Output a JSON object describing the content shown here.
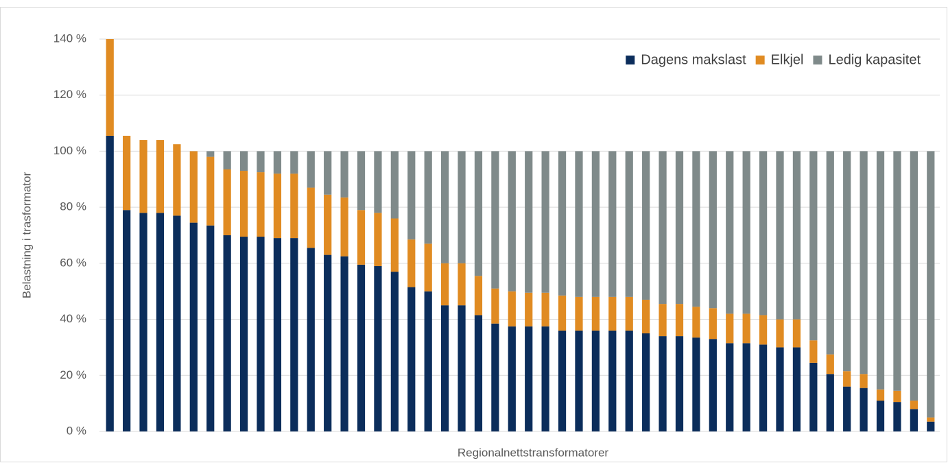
{
  "chart_data": {
    "type": "stacked_bar",
    "x_label": "Regionalnettstransformatorer",
    "y_label": "Belastning i trasformator",
    "categories": [
      null,
      null,
      null,
      null,
      null,
      null,
      null,
      null,
      null,
      null,
      null,
      null,
      null,
      null,
      null,
      null,
      null,
      null,
      null,
      null,
      null,
      null,
      null,
      null,
      null,
      null,
      null,
      null,
      null,
      null,
      null,
      null,
      null,
      null,
      null,
      null,
      null,
      null,
      null,
      null,
      null,
      null,
      null,
      null,
      null,
      null,
      null,
      null,
      null,
      null
    ],
    "series": [
      {
        "name": "Dagens makslast",
        "color": "#0b2d5b",
        "values": [
          105.5,
          79,
          78,
          78,
          77,
          74.5,
          73.5,
          70,
          69.5,
          69.5,
          69,
          69,
          65.5,
          63,
          62.5,
          59.5,
          59,
          57,
          51.5,
          50,
          45,
          45,
          41.5,
          38.5,
          37.5,
          37.5,
          37.5,
          36,
          36,
          36,
          36,
          36,
          35,
          34,
          34,
          33.5,
          33,
          31.5,
          31.5,
          31,
          30,
          30,
          24.5,
          20.5,
          16,
          15.5,
          11,
          10.5,
          8,
          3.5
        ]
      },
      {
        "name": "Elkjel",
        "color": "#e08b22",
        "values": [
          34.5,
          26.5,
          26,
          26,
          25.5,
          25.5,
          24.5,
          23.5,
          23.5,
          23,
          23,
          23,
          21.5,
          21.5,
          21,
          19.5,
          19,
          19,
          17,
          17,
          15,
          15,
          14,
          12.5,
          12.5,
          12,
          12,
          12.5,
          12,
          12,
          12,
          12,
          12,
          11.5,
          11.5,
          11,
          11,
          10.5,
          10.5,
          10.5,
          10,
          10,
          8,
          7,
          5.5,
          5,
          4,
          4,
          3,
          1.5
        ]
      },
      {
        "name": "Ledig kapasitet",
        "color": "#7f8a8a",
        "values": [
          0,
          0,
          0,
          0,
          0,
          0,
          2,
          6.5,
          7,
          7.5,
          8,
          8,
          13,
          15.5,
          16.5,
          21,
          22,
          24,
          31.5,
          33,
          40,
          40,
          44.5,
          49,
          50,
          50.5,
          50.5,
          51.5,
          52,
          52,
          52,
          52,
          53,
          54.5,
          54.5,
          55.5,
          56,
          58,
          58,
          58.5,
          60,
          60,
          67.5,
          72.5,
          78.5,
          79.5,
          85,
          85.5,
          89,
          95
        ]
      }
    ],
    "ylim": [
      0,
      140
    ],
    "yticks": [
      {
        "value": 0,
        "label": "0 %"
      },
      {
        "value": 20,
        "label": "20 %"
      },
      {
        "value": 40,
        "label": "40 %"
      },
      {
        "value": 60,
        "label": "60 %"
      },
      {
        "value": 80,
        "label": "80 %"
      },
      {
        "value": 100,
        "label": "100 %"
      },
      {
        "value": 120,
        "label": "120 %"
      },
      {
        "value": 140,
        "label": "140 %"
      }
    ],
    "grid": true,
    "legend": "top-right"
  }
}
